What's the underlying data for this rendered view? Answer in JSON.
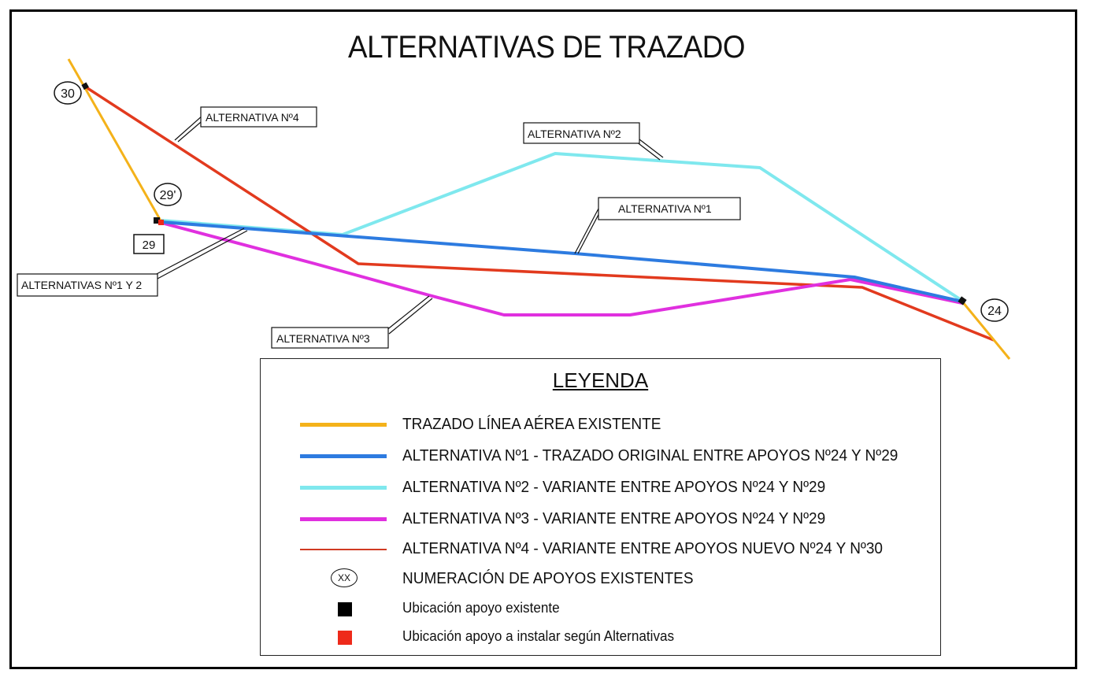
{
  "title": "ALTERNATIVAS DE TRAZADO",
  "colors": {
    "existing_line": "#f4b21a",
    "alt1": "#2d7be0",
    "alt2": "#7fe8ee",
    "alt3": "#e030df",
    "alt4": "#e23a1e",
    "existing_support": "#000000",
    "new_support": "#ee2a1a"
  },
  "callouts": {
    "alt4": "ALTERNATIVA Nº4",
    "alt2": "ALTERNATIVA Nº2",
    "alt1": "ALTERNATIVA Nº1",
    "alt12": "ALTERNATIVAS Nº1 Y 2",
    "alt3": "ALTERNATIVA Nº3"
  },
  "supports": {
    "s30": "30",
    "s29p": "29'",
    "s29": "29",
    "s24": "24"
  },
  "legend": {
    "title": "LEYENDA",
    "items": [
      {
        "label": "TRAZADO LÍNEA AÉREA EXISTENTE"
      },
      {
        "label": "ALTERNATIVA Nº1 - TRAZADO ORIGINAL ENTRE APOYOS Nº24 Y Nº29"
      },
      {
        "label": "ALTERNATIVA Nº2 - VARIANTE ENTRE APOYOS Nº24 Y Nº29"
      },
      {
        "label": "ALTERNATIVA Nº3 - VARIANTE ENTRE APOYOS Nº24 Y Nº29"
      },
      {
        "label": "ALTERNATIVA Nº4 - VARIANTE ENTRE APOYOS NUEVO Nº24 Y Nº30"
      },
      {
        "label": "NUMERACIÓN DE APOYOS EXISTENTES",
        "symbol_text": "XX"
      },
      {
        "label": "Ubicación apoyo existente"
      },
      {
        "label": "Ubicación apoyo a instalar según Alternativas"
      }
    ]
  }
}
